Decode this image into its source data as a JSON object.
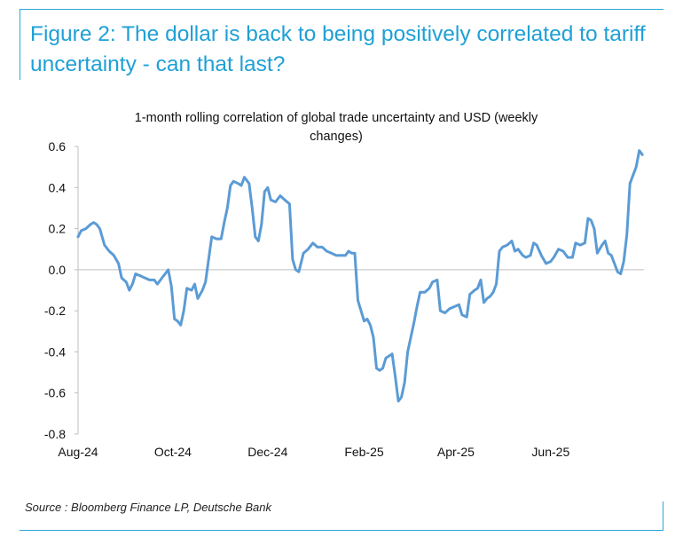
{
  "figure": {
    "title": "Figure 2: The dollar is back to being positively correlated to tariff uncertainty - can that last?",
    "source": "Source : Bloomberg Finance LP, Deutsche Bank",
    "accent_color": "#1fa0d6"
  },
  "chart_data": {
    "type": "line",
    "title_line1": "1-month rolling correlation of global trade uncertainty and USD (weekly",
    "title_line2": "changes)",
    "xlabel": "",
    "ylabel": "",
    "ylim": [
      -0.8,
      0.6
    ],
    "yticks": [
      "0.6",
      "0.4",
      "0.2",
      "0.0",
      "-0.2",
      "-0.4",
      "-0.6",
      "-0.8"
    ],
    "xticks": [
      "Aug-24",
      "Oct-24",
      "Dec-24",
      "Feb-25",
      "Apr-25",
      "Jun-25"
    ],
    "grid": false,
    "line_color": "#5b9bd5",
    "series": [
      {
        "values": [
          [
            "2024-08-01",
            0.16
          ],
          [
            "2024-08-03",
            0.19
          ],
          [
            "2024-08-06",
            0.2
          ],
          [
            "2024-08-09",
            0.22
          ],
          [
            "2024-08-11",
            0.23
          ],
          [
            "2024-08-13",
            0.22
          ],
          [
            "2024-08-15",
            0.2
          ],
          [
            "2024-08-18",
            0.12
          ],
          [
            "2024-08-21",
            0.09
          ],
          [
            "2024-08-24",
            0.07
          ],
          [
            "2024-08-27",
            0.03
          ],
          [
            "2024-08-29",
            -0.04
          ],
          [
            "2024-09-01",
            -0.06
          ],
          [
            "2024-09-03",
            -0.1
          ],
          [
            "2024-09-05",
            -0.07
          ],
          [
            "2024-09-07",
            -0.02
          ],
          [
            "2024-09-10",
            -0.03
          ],
          [
            "2024-09-13",
            -0.04
          ],
          [
            "2024-09-16",
            -0.05
          ],
          [
            "2024-09-19",
            -0.05
          ],
          [
            "2024-09-21",
            -0.07
          ],
          [
            "2024-09-24",
            -0.04
          ],
          [
            "2024-09-26",
            -0.02
          ],
          [
            "2024-09-28",
            0.0
          ],
          [
            "2024-09-30",
            -0.08
          ],
          [
            "2024-10-02",
            -0.24
          ],
          [
            "2024-10-04",
            -0.25
          ],
          [
            "2024-10-06",
            -0.27
          ],
          [
            "2024-10-08",
            -0.2
          ],
          [
            "2024-10-10",
            -0.09
          ],
          [
            "2024-10-13",
            -0.1
          ],
          [
            "2024-10-15",
            -0.07
          ],
          [
            "2024-10-17",
            -0.14
          ],
          [
            "2024-10-20",
            -0.1
          ],
          [
            "2024-10-22",
            -0.06
          ],
          [
            "2024-10-24",
            0.05
          ],
          [
            "2024-10-26",
            0.16
          ],
          [
            "2024-10-29",
            0.15
          ],
          [
            "2024-11-01",
            0.15
          ],
          [
            "2024-11-03",
            0.23
          ],
          [
            "2024-11-05",
            0.3
          ],
          [
            "2024-11-07",
            0.41
          ],
          [
            "2024-11-09",
            0.43
          ],
          [
            "2024-11-12",
            0.42
          ],
          [
            "2024-11-14",
            0.41
          ],
          [
            "2024-11-16",
            0.45
          ],
          [
            "2024-11-19",
            0.42
          ],
          [
            "2024-11-21",
            0.3
          ],
          [
            "2024-11-23",
            0.16
          ],
          [
            "2024-11-25",
            0.14
          ],
          [
            "2024-11-27",
            0.22
          ],
          [
            "2024-11-29",
            0.38
          ],
          [
            "2024-12-01",
            0.4
          ],
          [
            "2024-12-03",
            0.34
          ],
          [
            "2024-12-06",
            0.33
          ],
          [
            "2024-12-09",
            0.36
          ],
          [
            "2024-12-12",
            0.34
          ],
          [
            "2024-12-15",
            0.32
          ],
          [
            "2024-12-17",
            0.05
          ],
          [
            "2024-12-19",
            0.0
          ],
          [
            "2024-12-21",
            -0.01
          ],
          [
            "2024-12-24",
            0.08
          ],
          [
            "2024-12-27",
            0.1
          ],
          [
            "2024-12-30",
            0.13
          ],
          [
            "2025-01-02",
            0.11
          ],
          [
            "2025-01-05",
            0.11
          ],
          [
            "2025-01-08",
            0.09
          ],
          [
            "2025-01-11",
            0.08
          ],
          [
            "2025-01-14",
            0.07
          ],
          [
            "2025-01-17",
            0.07
          ],
          [
            "2025-01-20",
            0.07
          ],
          [
            "2025-01-22",
            0.09
          ],
          [
            "2025-01-24",
            0.08
          ],
          [
            "2025-01-26",
            0.08
          ],
          [
            "2025-01-28",
            -0.15
          ],
          [
            "2025-01-30",
            -0.2
          ],
          [
            "2025-02-01",
            -0.25
          ],
          [
            "2025-02-03",
            -0.24
          ],
          [
            "2025-02-05",
            -0.27
          ],
          [
            "2025-02-07",
            -0.33
          ],
          [
            "2025-02-09",
            -0.48
          ],
          [
            "2025-02-11",
            -0.49
          ],
          [
            "2025-02-13",
            -0.48
          ],
          [
            "2025-02-15",
            -0.43
          ],
          [
            "2025-02-17",
            -0.42
          ],
          [
            "2025-02-19",
            -0.41
          ],
          [
            "2025-02-21",
            -0.52
          ],
          [
            "2025-02-23",
            -0.64
          ],
          [
            "2025-02-25",
            -0.62
          ],
          [
            "2025-02-27",
            -0.55
          ],
          [
            "2025-03-01",
            -0.4
          ],
          [
            "2025-03-03",
            -0.33
          ],
          [
            "2025-03-05",
            -0.26
          ],
          [
            "2025-03-07",
            -0.18
          ],
          [
            "2025-03-09",
            -0.11
          ],
          [
            "2025-03-12",
            -0.11
          ],
          [
            "2025-03-15",
            -0.09
          ],
          [
            "2025-03-17",
            -0.06
          ],
          [
            "2025-03-20",
            -0.05
          ],
          [
            "2025-03-22",
            -0.2
          ],
          [
            "2025-03-25",
            -0.21
          ],
          [
            "2025-03-28",
            -0.19
          ],
          [
            "2025-03-31",
            -0.18
          ],
          [
            "2025-04-03",
            -0.17
          ],
          [
            "2025-04-05",
            -0.22
          ],
          [
            "2025-04-08",
            -0.23
          ],
          [
            "2025-04-10",
            -0.12
          ],
          [
            "2025-04-13",
            -0.1
          ],
          [
            "2025-04-15",
            -0.09
          ],
          [
            "2025-04-17",
            -0.05
          ],
          [
            "2025-04-19",
            -0.16
          ],
          [
            "2025-04-21",
            -0.14
          ],
          [
            "2025-04-23",
            -0.13
          ],
          [
            "2025-04-25",
            -0.11
          ],
          [
            "2025-04-27",
            -0.07
          ],
          [
            "2025-04-29",
            0.09
          ],
          [
            "2025-05-01",
            0.11
          ],
          [
            "2025-05-04",
            0.12
          ],
          [
            "2025-05-07",
            0.14
          ],
          [
            "2025-05-09",
            0.09
          ],
          [
            "2025-05-11",
            0.1
          ],
          [
            "2025-05-14",
            0.07
          ],
          [
            "2025-05-16",
            0.06
          ],
          [
            "2025-05-19",
            0.07
          ],
          [
            "2025-05-21",
            0.13
          ],
          [
            "2025-05-23",
            0.12
          ],
          [
            "2025-05-26",
            0.07
          ],
          [
            "2025-05-29",
            0.03
          ],
          [
            "2025-06-01",
            0.04
          ],
          [
            "2025-06-03",
            0.06
          ],
          [
            "2025-06-06",
            0.1
          ],
          [
            "2025-06-09",
            0.09
          ],
          [
            "2025-06-12",
            0.06
          ],
          [
            "2025-06-15",
            0.06
          ],
          [
            "2025-06-17",
            0.13
          ],
          [
            "2025-06-20",
            0.12
          ],
          [
            "2025-06-23",
            0.13
          ],
          [
            "2025-06-25",
            0.25
          ],
          [
            "2025-06-27",
            0.24
          ],
          [
            "2025-06-29",
            0.2
          ],
          [
            "2025-07-01",
            0.08
          ],
          [
            "2025-07-04",
            0.12
          ],
          [
            "2025-07-06",
            0.14
          ],
          [
            "2025-07-08",
            0.08
          ],
          [
            "2025-07-10",
            0.07
          ],
          [
            "2025-07-12",
            0.03
          ],
          [
            "2025-07-14",
            -0.01
          ],
          [
            "2025-07-16",
            -0.02
          ],
          [
            "2025-07-18",
            0.04
          ],
          [
            "2025-07-20",
            0.17
          ],
          [
            "2025-07-22",
            0.42
          ],
          [
            "2025-07-24",
            0.46
          ],
          [
            "2025-07-26",
            0.5
          ],
          [
            "2025-07-28",
            0.58
          ],
          [
            "2025-07-30",
            0.56
          ]
        ]
      }
    ]
  }
}
